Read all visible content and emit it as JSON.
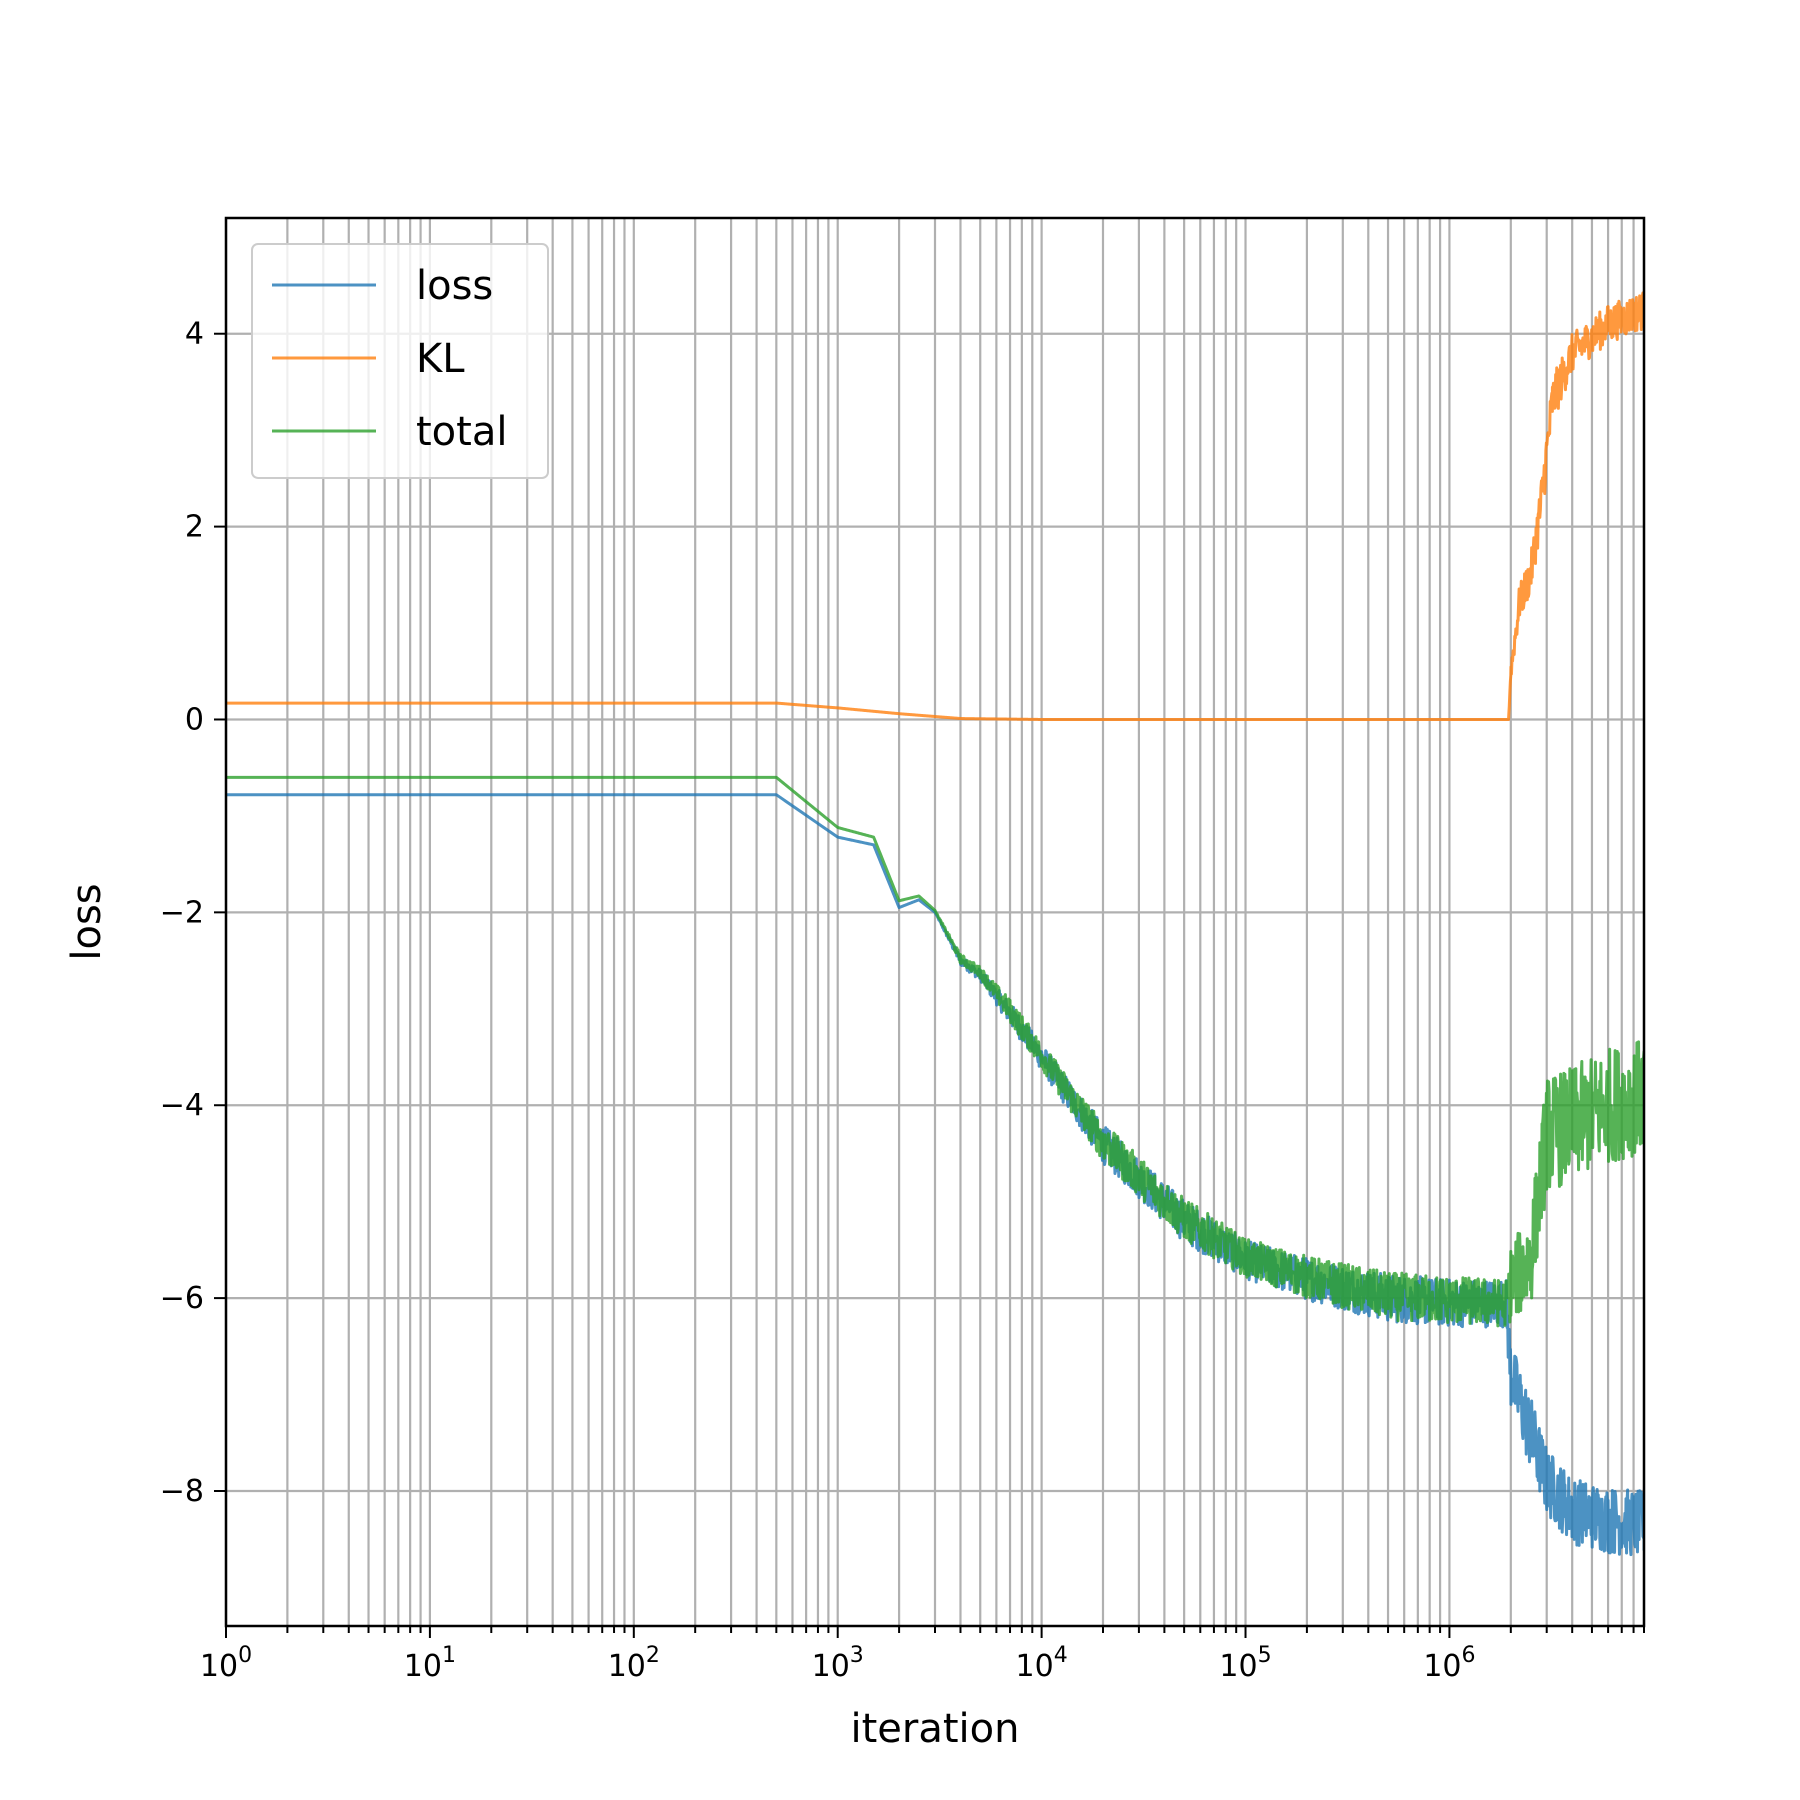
{
  "chart_data": {
    "type": "line",
    "title": "",
    "xlabel": "iteration",
    "ylabel": "loss",
    "xscale": "log",
    "xlim": [
      1,
      9000000
    ],
    "ylim": [
      -9.4,
      5.2
    ],
    "grid": "on (major and minor)",
    "legend_position": "upper-left",
    "x_ticks": [
      {
        "base": "10",
        "exp": "0",
        "value": 1
      },
      {
        "base": "10",
        "exp": "1",
        "value": 10
      },
      {
        "base": "10",
        "exp": "2",
        "value": 100
      },
      {
        "base": "10",
        "exp": "3",
        "value": 1000
      },
      {
        "base": "10",
        "exp": "4",
        "value": 10000
      },
      {
        "base": "10",
        "exp": "5",
        "value": 100000
      },
      {
        "base": "10",
        "exp": "6",
        "value": 1000000
      }
    ],
    "y_ticks": [
      {
        "label": "4",
        "value": 4
      },
      {
        "label": "2",
        "value": 2
      },
      {
        "label": "0",
        "value": 0
      },
      {
        "label": "−2",
        "value": -2
      },
      {
        "label": "−4",
        "value": -4
      },
      {
        "label": "−6",
        "value": -6
      },
      {
        "label": "−8",
        "value": -8
      }
    ],
    "series": [
      {
        "name": "loss",
        "color": "#1f77b4",
        "x": [
          1,
          500,
          1000,
          1500,
          2000,
          2500,
          3000,
          4000,
          5000,
          7000,
          10000,
          20000,
          50000,
          100000,
          200000,
          500000,
          1000000,
          1900000,
          2000000,
          2500000,
          3000000,
          4000000,
          6000000,
          9000000
        ],
        "y": [
          -0.78,
          -0.78,
          -1.22,
          -1.3,
          -1.95,
          -1.87,
          -2.0,
          -2.5,
          -2.65,
          -3.05,
          -3.5,
          -4.4,
          -5.2,
          -5.6,
          -5.8,
          -6.0,
          -6.05,
          -6.05,
          -6.8,
          -7.4,
          -7.9,
          -8.2,
          -8.3,
          -8.35
        ],
        "noise": [
          0,
          0,
          0,
          0,
          0,
          0,
          0,
          0.05,
          0.06,
          0.12,
          0.14,
          0.2,
          0.22,
          0.2,
          0.22,
          0.25,
          0.25,
          0.25,
          0.35,
          0.4,
          0.35,
          0.35,
          0.35,
          0.35
        ]
      },
      {
        "name": "KL",
        "color": "#ff7f0e",
        "x": [
          1,
          500,
          1000,
          2000,
          4000,
          10000,
          100000,
          1000000,
          1950000,
          2000000,
          2200000,
          2500000,
          2800000,
          3200000,
          4000000,
          6000000,
          9000000
        ],
        "y": [
          0.17,
          0.17,
          0.12,
          0.06,
          0.01,
          0.0,
          0.0,
          0.0,
          0.0,
          0.5,
          1.2,
          1.5,
          2.2,
          3.3,
          3.8,
          4.1,
          4.25
        ],
        "noise": [
          0,
          0,
          0,
          0,
          0,
          0,
          0,
          0,
          0,
          0.1,
          0.18,
          0.2,
          0.25,
          0.25,
          0.2,
          0.2,
          0.2
        ]
      },
      {
        "name": "total",
        "color": "#2ca02c",
        "x": [
          1,
          500,
          1000,
          1500,
          2000,
          2500,
          3000,
          4000,
          5000,
          7000,
          10000,
          20000,
          50000,
          100000,
          200000,
          500000,
          1000000,
          1900000,
          2000000,
          2500000,
          3000000,
          4000000,
          6000000,
          9000000
        ],
        "y": [
          -0.6,
          -0.6,
          -1.12,
          -1.22,
          -1.88,
          -1.83,
          -1.98,
          -2.48,
          -2.62,
          -3.02,
          -3.48,
          -4.38,
          -5.18,
          -5.58,
          -5.78,
          -5.98,
          -6.02,
          -6.05,
          -5.85,
          -5.6,
          -4.3,
          -4.2,
          -4.0,
          -3.9
        ],
        "noise": [
          0,
          0,
          0,
          0,
          0,
          0,
          0,
          0.05,
          0.06,
          0.12,
          0.14,
          0.2,
          0.22,
          0.2,
          0.22,
          0.25,
          0.25,
          0.25,
          0.4,
          0.5,
          0.6,
          0.6,
          0.6,
          0.6
        ]
      }
    ]
  }
}
